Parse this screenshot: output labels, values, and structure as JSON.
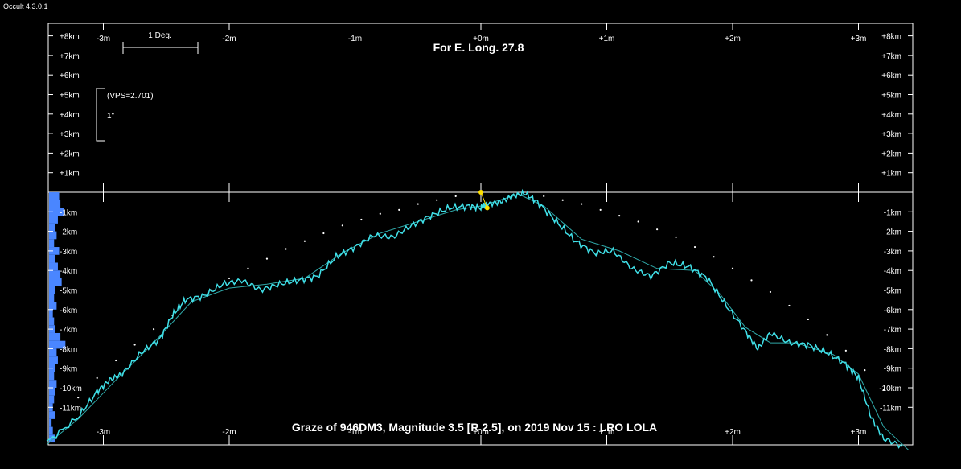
{
  "app": {
    "title": "Occult 4.3.0.1"
  },
  "chart_data": {
    "type": "line",
    "title": "For E. Long. 27.8",
    "caption": "Graze of  946DM3,  Magnitude 3.5 [R 2.5],  on 2019 Nov 15 :  LRO LOLA",
    "x_ticks_top": [
      "-3m",
      "-2m",
      "-1m",
      "+0m",
      "+1m",
      "+2m",
      "+3m"
    ],
    "x_ticks_bottom": [
      "-3m",
      "-2m",
      "-1m",
      "+0m",
      "+1m",
      "+2m",
      "+3m"
    ],
    "x_tick_values": [
      -3,
      -2,
      -1,
      0,
      1,
      2,
      3
    ],
    "xlim": [
      -3.45,
      3.45
    ],
    "ylim": [
      -13,
      8.5
    ],
    "y_ticks_positive": [
      "+8km",
      "+7km",
      "+6km",
      "+5km",
      "+4km",
      "+3km",
      "+2km",
      "+1km"
    ],
    "y_ticks_negative": [
      "-1km",
      "-2km",
      "-3km",
      "-4km",
      "-5km",
      "-6km",
      "-7km",
      "-8km",
      "-9km",
      "-10km",
      "-11km"
    ],
    "scale_bar_label": "1 Deg.",
    "vps_label": "(VPS=2.701)",
    "arcsec_label": "1\"",
    "colors": {
      "profile": "#40e0e8",
      "smooth": "#2fa8a8",
      "histogram": "#4a86ff",
      "event": "#ffe000",
      "dots": "#ffffff"
    },
    "profile": {
      "x": [
        -3.45,
        -3.2,
        -3.05,
        -2.95,
        -2.85,
        -2.7,
        -2.55,
        -2.45,
        -2.35,
        -2.2,
        -2.05,
        -1.9,
        -1.75,
        -1.6,
        -1.45,
        -1.3,
        -1.15,
        -1.0,
        -0.85,
        -0.7,
        -0.55,
        -0.4,
        -0.25,
        -0.1,
        0.0,
        0.05,
        0.15,
        0.25,
        0.35,
        0.45,
        0.6,
        0.75,
        0.9,
        1.05,
        1.2,
        1.35,
        1.5,
        1.65,
        1.8,
        1.95,
        2.1,
        2.2,
        2.3,
        2.45,
        2.6,
        2.75,
        2.9,
        3.0,
        3.1,
        3.2,
        3.35
      ],
      "y": [
        -12.8,
        -11.5,
        -10.2,
        -9.6,
        -9.3,
        -8.2,
        -7.5,
        -6.3,
        -5.5,
        -5.3,
        -4.7,
        -4.5,
        -5.0,
        -4.7,
        -4.5,
        -4.3,
        -3.3,
        -2.8,
        -2.2,
        -2.3,
        -1.7,
        -1.2,
        -0.8,
        -0.7,
        -0.8,
        -0.6,
        -0.5,
        -0.2,
        -0.05,
        -0.5,
        -1.5,
        -2.5,
        -3.1,
        -3.0,
        -3.9,
        -4.3,
        -3.6,
        -3.8,
        -4.4,
        -5.8,
        -7.1,
        -8.0,
        -7.2,
        -7.7,
        -7.8,
        -8.2,
        -8.8,
        -9.5,
        -11.5,
        -12.6,
        -13.0
      ]
    },
    "smooth": {
      "x": [
        -3.45,
        -3.2,
        -2.9,
        -2.6,
        -2.3,
        -2.0,
        -1.7,
        -1.4,
        -1.1,
        -0.8,
        -0.5,
        -0.2,
        0.0,
        0.15,
        0.3,
        0.5,
        0.8,
        1.1,
        1.4,
        1.7,
        1.9,
        2.1,
        2.3,
        2.5,
        2.8,
        3.0,
        3.2,
        3.4
      ],
      "y": [
        -12.9,
        -11.6,
        -9.6,
        -7.7,
        -5.6,
        -4.9,
        -4.7,
        -4.4,
        -3.1,
        -2.1,
        -1.5,
        -0.9,
        -0.7,
        -0.4,
        -0.1,
        -0.7,
        -2.4,
        -3.0,
        -3.9,
        -4.0,
        -5.2,
        -6.9,
        -7.7,
        -7.7,
        -8.3,
        -9.3,
        -12.0,
        -13.2
      ]
    },
    "limb_dots": {
      "x": [
        -3.2,
        -3.05,
        -2.9,
        -2.75,
        -2.6,
        -2.45,
        -2.3,
        -2.15,
        -2.0,
        -1.85,
        -1.7,
        -1.55,
        -1.4,
        -1.25,
        -1.1,
        -0.95,
        -0.8,
        -0.65,
        -0.5,
        -0.35,
        -0.2,
        0.5,
        0.65,
        0.8,
        0.95,
        1.1,
        1.25,
        1.4,
        1.55,
        1.7,
        1.85,
        2.0,
        2.15,
        2.3,
        2.45,
        2.6,
        2.75,
        2.9,
        3.05,
        3.2
      ],
      "y": [
        -10.5,
        -9.5,
        -8.6,
        -7.8,
        -7.0,
        -6.3,
        -5.6,
        -5.0,
        -4.4,
        -3.9,
        -3.4,
        -2.9,
        -2.5,
        -2.1,
        -1.7,
        -1.4,
        -1.1,
        -0.9,
        -0.6,
        -0.4,
        -0.2,
        -0.2,
        -0.4,
        -0.6,
        -0.9,
        -1.2,
        -1.5,
        -1.9,
        -2.3,
        -2.8,
        -3.3,
        -3.9,
        -4.5,
        -5.1,
        -5.8,
        -6.5,
        -7.3,
        -8.1,
        -9.1,
        -10.1
      ]
    },
    "event_points": {
      "x": [
        0.0,
        0.05
      ],
      "y": [
        0.0,
        -0.8
      ]
    },
    "histogram": {
      "y": [
        -0.2,
        -0.6,
        -1.0,
        -1.4,
        -1.8,
        -2.2,
        -2.6,
        -3.0,
        -3.4,
        -3.8,
        -4.2,
        -4.6,
        -5.0,
        -5.4,
        -5.8,
        -6.2,
        -6.6,
        -7.0,
        -7.4,
        -7.8,
        -8.2,
        -8.6,
        -9.0,
        -9.4,
        -9.8,
        -10.2,
        -10.6,
        -11.0,
        -11.4,
        -11.8,
        -12.2,
        -12.6
      ],
      "w": [
        0.08,
        0.09,
        0.12,
        0.07,
        0.05,
        0.06,
        0.04,
        0.08,
        0.05,
        0.07,
        0.09,
        0.1,
        0.05,
        0.04,
        0.06,
        0.03,
        0.04,
        0.05,
        0.09,
        0.13,
        0.06,
        0.07,
        0.05,
        0.04,
        0.06,
        0.05,
        0.04,
        0.03,
        0.05,
        0.02,
        0.03,
        0.05
      ]
    }
  }
}
